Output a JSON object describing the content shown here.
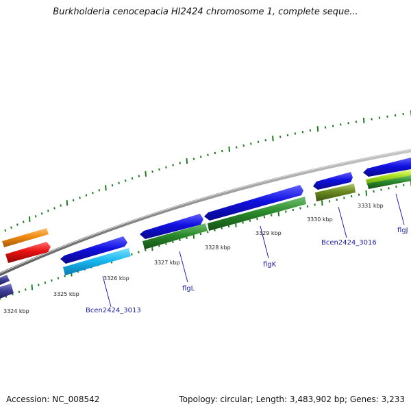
{
  "title": "Burkholderia cenocepacia HI2424 chromosome 1, complete seque...",
  "footer": {
    "accession": "Accession: NC_008542",
    "summary": "Topology: circular; Length: 3,483,902 bp; Genes: 3,233"
  },
  "kbp_labels": [
    "3324 kbp",
    "3325 kbp",
    "3326 kbp",
    "3327 kbp",
    "3328 kbp",
    "3329 kbp",
    "3330 kbp",
    "3331 kbp"
  ],
  "gene_labels": [
    "Bcen2424_3013",
    "flgL",
    "flgK",
    "Bcen2424_3016",
    "flgJ"
  ],
  "colors": {
    "backbone": "#8c8c8c",
    "tick": "#1e7a1e",
    "cds_blue": "#1010e0",
    "cds_cyan": "#18b8f0",
    "cds_red": "#e81010",
    "cds_orange": "#f08a10",
    "cds_navy": "#404098",
    "cds_green": "#2a8a2a",
    "cds_olive": "#6a8a20",
    "cds_lime": "#a8e020",
    "label_line": "#2020c0"
  }
}
